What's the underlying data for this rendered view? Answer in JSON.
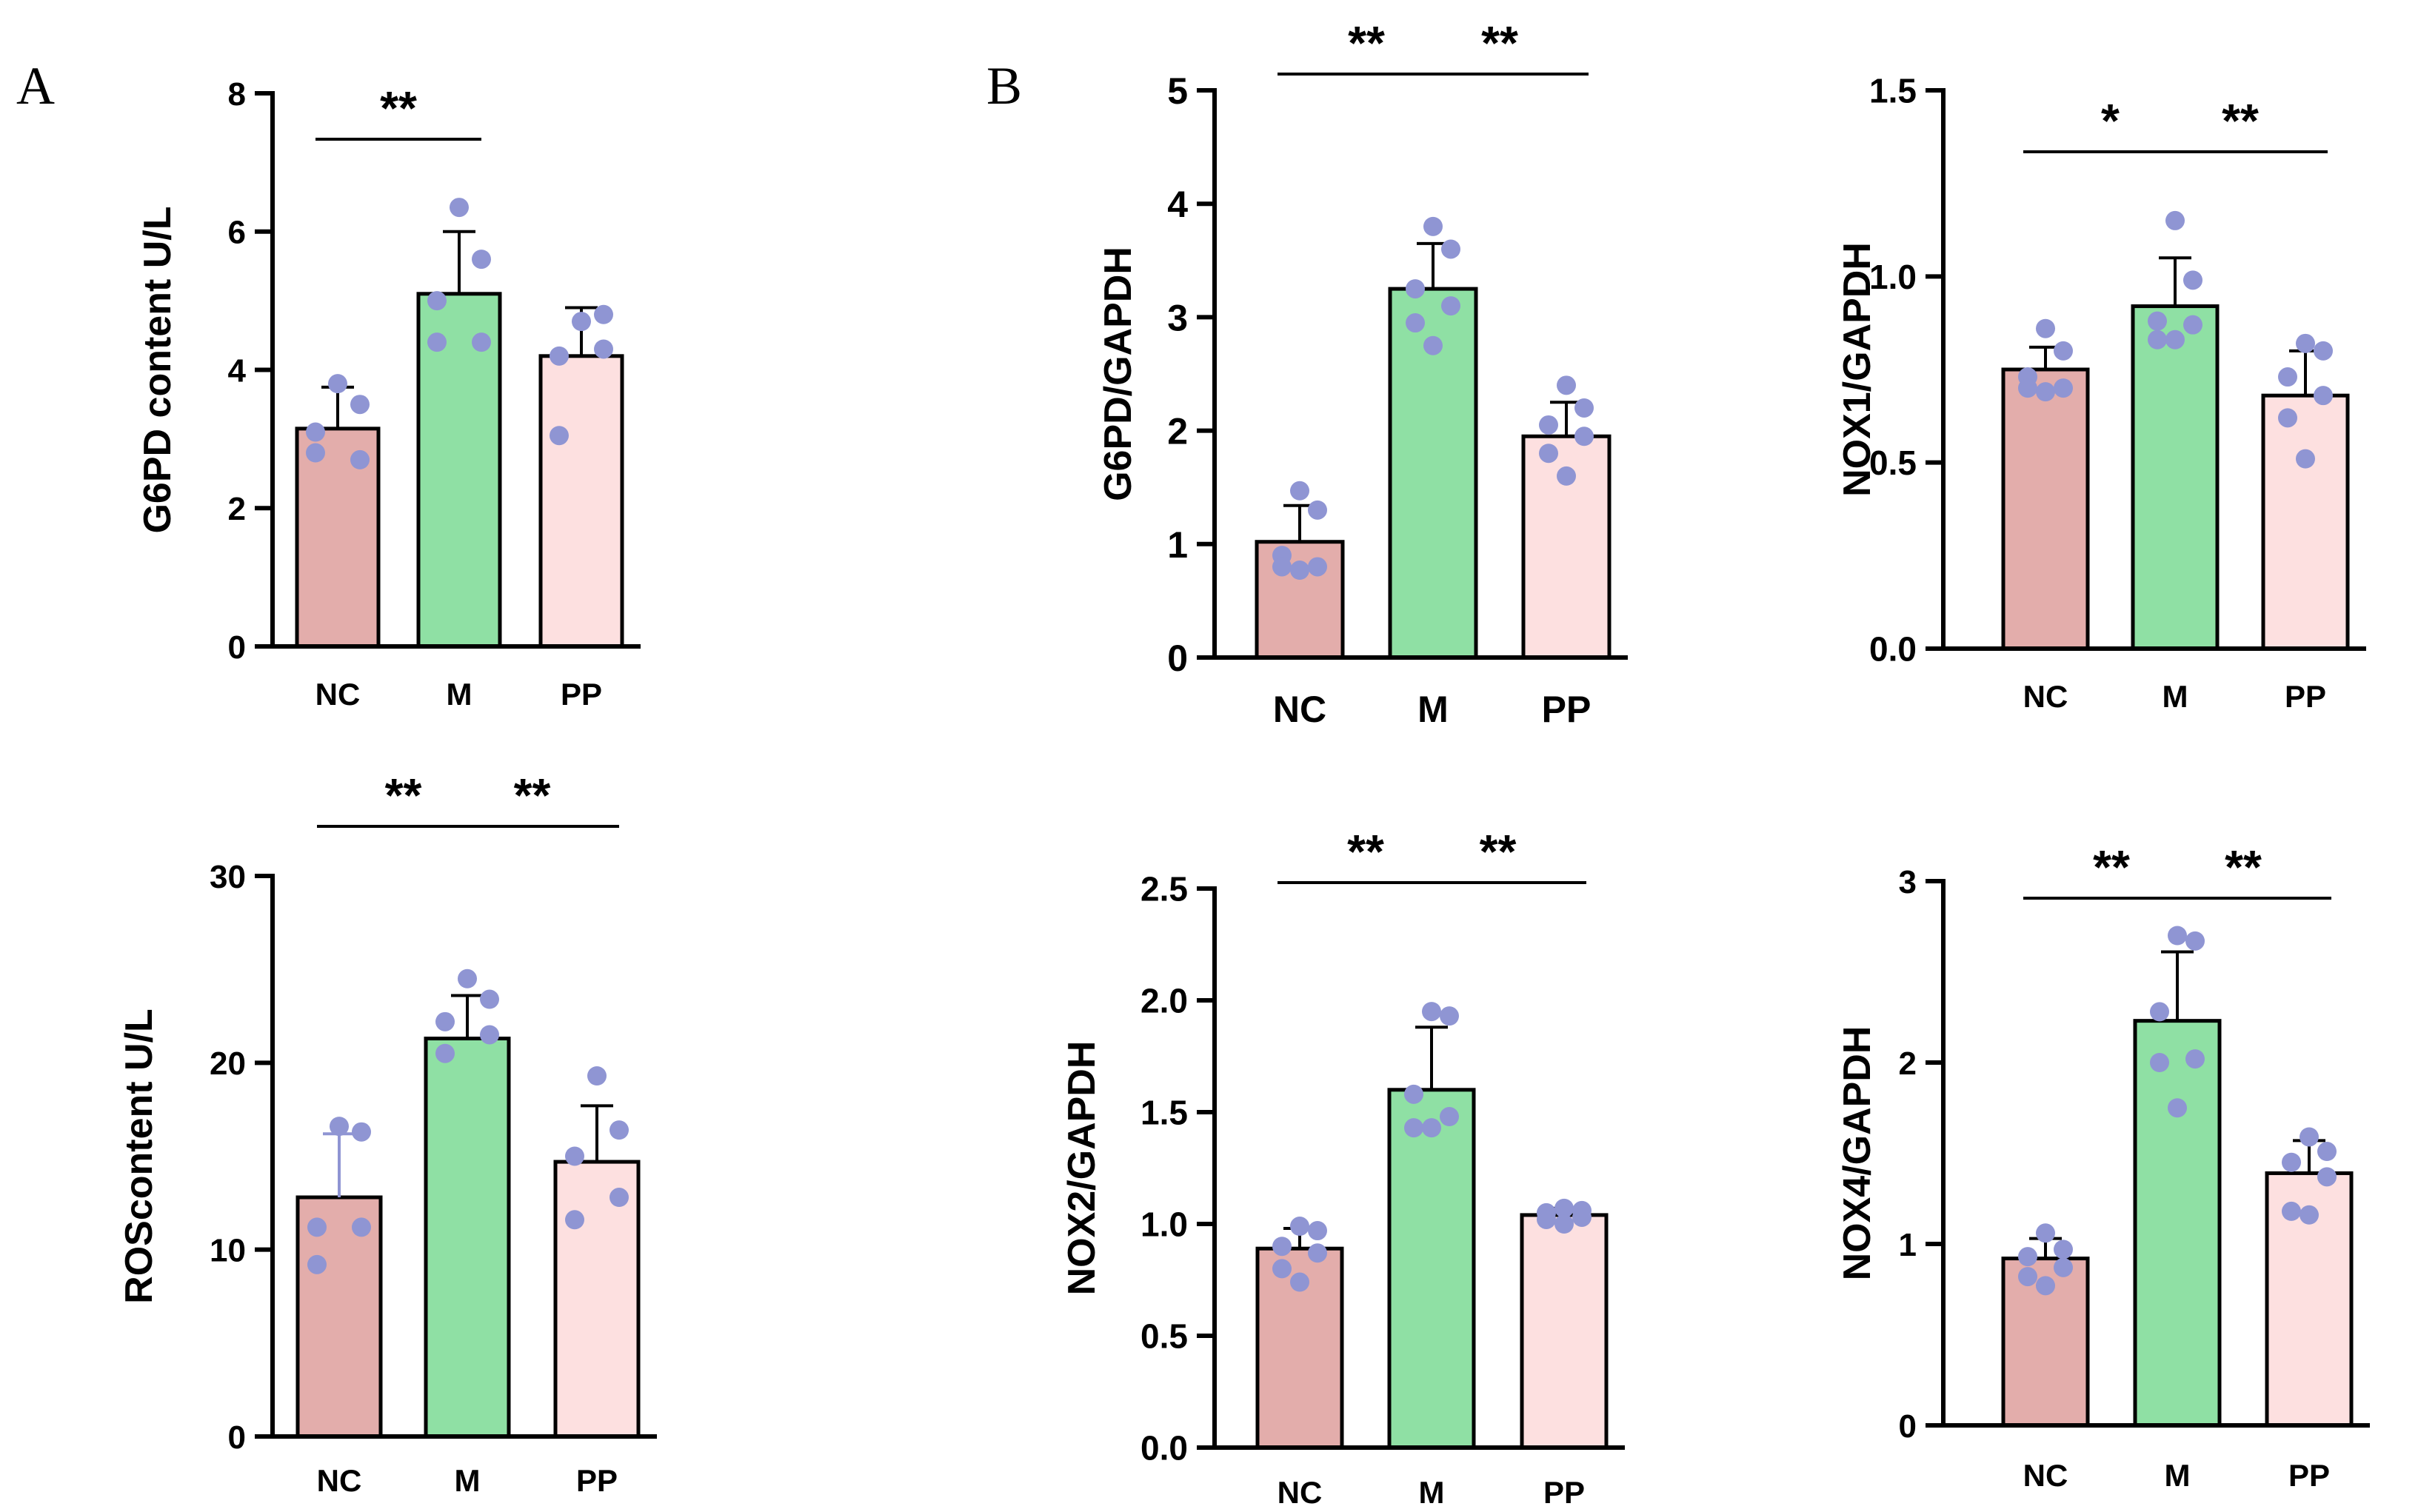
{
  "panel_labels": [
    "A",
    "B"
  ],
  "colors": {
    "NC": "#e3adab",
    "M": "#8fe0a4",
    "PP": "#fde0e0",
    "dots": "#8f95d3"
  },
  "chart_data": [
    {
      "id": "g6pd-content",
      "type": "bar",
      "panel": "A",
      "title": "",
      "xlabel": "",
      "ylabel": "G6PD content U/L",
      "categories": [
        "NC",
        "M",
        "PP"
      ],
      "values": [
        3.15,
        5.1,
        4.2
      ],
      "errors": [
        0.6,
        0.9,
        0.7
      ],
      "points": [
        [
          3.8,
          3.5,
          2.8,
          2.7,
          3.1
        ],
        [
          6.35,
          5.6,
          5.0,
          4.4,
          4.4
        ],
        [
          4.7,
          4.8,
          4.2,
          4.3,
          3.05
        ]
      ],
      "ylim": [
        0,
        8
      ],
      "yticks": [
        0,
        2,
        4,
        6,
        8
      ],
      "ytick_labels": [
        "0",
        "2",
        "4",
        "6",
        "8"
      ],
      "significance": [
        {
          "from": 0,
          "to": 1,
          "label": "**"
        }
      ]
    },
    {
      "id": "ros-content",
      "type": "bar",
      "panel": "A",
      "title": "",
      "xlabel": "",
      "ylabel": "ROScontent U/L",
      "categories": [
        "NC",
        "M",
        "PP"
      ],
      "values": [
        12.8,
        21.3,
        14.7
      ],
      "errors": [
        3.4,
        2.3,
        3.0
      ],
      "points": [
        [
          16.6,
          16.3,
          11.2,
          11.2,
          9.2
        ],
        [
          24.5,
          23.4,
          22.2,
          21.5,
          20.5
        ],
        [
          19.3,
          16.4,
          15.0,
          12.8,
          11.6
        ]
      ],
      "ylim": [
        0,
        30
      ],
      "yticks": [
        0,
        10,
        20,
        30
      ],
      "ytick_labels": [
        "0",
        "10",
        "20",
        "30"
      ],
      "significance": [
        {
          "from": 0,
          "to": 1,
          "label": "**"
        },
        {
          "from": 1,
          "to": 2,
          "label": "**"
        }
      ]
    },
    {
      "id": "g6pd-gapdh",
      "type": "bar",
      "panel": "B",
      "title": "",
      "xlabel": "",
      "ylabel": "G6PD/GAPDH",
      "categories": [
        "NC",
        "M",
        "PP"
      ],
      "values": [
        1.02,
        3.25,
        1.95
      ],
      "errors": [
        0.32,
        0.4,
        0.3
      ],
      "points": [
        [
          1.47,
          1.3,
          0.9,
          0.8,
          0.8,
          0.77
        ],
        [
          3.8,
          3.6,
          3.25,
          3.1,
          2.95,
          2.75
        ],
        [
          2.4,
          2.2,
          2.05,
          1.95,
          1.8,
          1.6
        ]
      ],
      "ylim": [
        0,
        5
      ],
      "yticks": [
        0,
        1,
        2,
        3,
        4,
        5
      ],
      "ytick_labels": [
        "0",
        "1",
        "2",
        "3",
        "4",
        "5"
      ],
      "significance": [
        {
          "from": 0,
          "to": 1,
          "label": "**"
        },
        {
          "from": 1,
          "to": 2,
          "label": "**"
        }
      ]
    },
    {
      "id": "nox1-gapdh",
      "type": "bar",
      "panel": "B",
      "title": "",
      "xlabel": "",
      "ylabel": "NOX1/GAPDH",
      "categories": [
        "NC",
        "M",
        "PP"
      ],
      "values": [
        0.75,
        0.92,
        0.68
      ],
      "errors": [
        0.06,
        0.13,
        0.12
      ],
      "points": [
        [
          0.86,
          0.8,
          0.73,
          0.7,
          0.7,
          0.69
        ],
        [
          1.15,
          0.99,
          0.88,
          0.87,
          0.83,
          0.83
        ],
        [
          0.82,
          0.8,
          0.73,
          0.68,
          0.62,
          0.51
        ]
      ],
      "ylim": [
        0,
        1.5
      ],
      "yticks": [
        0,
        0.5,
        1.0,
        1.5
      ],
      "ytick_labels": [
        "0.0",
        "0.5",
        "1.0",
        "1.5"
      ],
      "significance": [
        {
          "from": 0,
          "to": 1,
          "label": "*"
        },
        {
          "from": 1,
          "to": 2,
          "label": "**"
        }
      ]
    },
    {
      "id": "nox2-gapdh",
      "type": "bar",
      "panel": "B",
      "title": "",
      "xlabel": "",
      "ylabel": "NOX2/GAPDH",
      "categories": [
        "NC",
        "M",
        "PP"
      ],
      "values": [
        0.89,
        1.6,
        1.04
      ],
      "errors": [
        0.09,
        0.28,
        0.03
      ],
      "points": [
        [
          0.99,
          0.97,
          0.9,
          0.87,
          0.8,
          0.74
        ],
        [
          1.95,
          1.93,
          1.58,
          1.48,
          1.43,
          1.43
        ],
        [
          1.07,
          1.06,
          1.05,
          1.03,
          1.02,
          1.0
        ]
      ],
      "ylim": [
        0,
        2.5
      ],
      "yticks": [
        0,
        0.5,
        1.0,
        1.5,
        2.0,
        2.5
      ],
      "ytick_labels": [
        "0.0",
        "0.5",
        "1.0",
        "1.5",
        "2.0",
        "2.5"
      ],
      "significance": [
        {
          "from": 0,
          "to": 1,
          "label": "**"
        },
        {
          "from": 1,
          "to": 2,
          "label": "**"
        }
      ]
    },
    {
      "id": "nox4-gapdh",
      "type": "bar",
      "panel": "B",
      "title": "",
      "xlabel": "",
      "ylabel": "NOX4/GAPDH",
      "categories": [
        "NC",
        "M",
        "PP"
      ],
      "values": [
        0.92,
        2.23,
        1.39
      ],
      "errors": [
        0.11,
        0.38,
        0.18
      ],
      "points": [
        [
          1.06,
          0.97,
          0.93,
          0.87,
          0.82,
          0.77
        ],
        [
          2.7,
          2.67,
          2.28,
          2.02,
          2.0,
          1.75
        ],
        [
          1.59,
          1.51,
          1.45,
          1.37,
          1.18,
          1.16
        ]
      ],
      "ylim": [
        0,
        3
      ],
      "yticks": [
        0,
        1,
        2,
        3
      ],
      "ytick_labels": [
        "0",
        "1",
        "2",
        "3"
      ],
      "significance": [
        {
          "from": 0,
          "to": 1,
          "label": "**"
        },
        {
          "from": 1,
          "to": 2,
          "label": "**"
        }
      ]
    }
  ]
}
